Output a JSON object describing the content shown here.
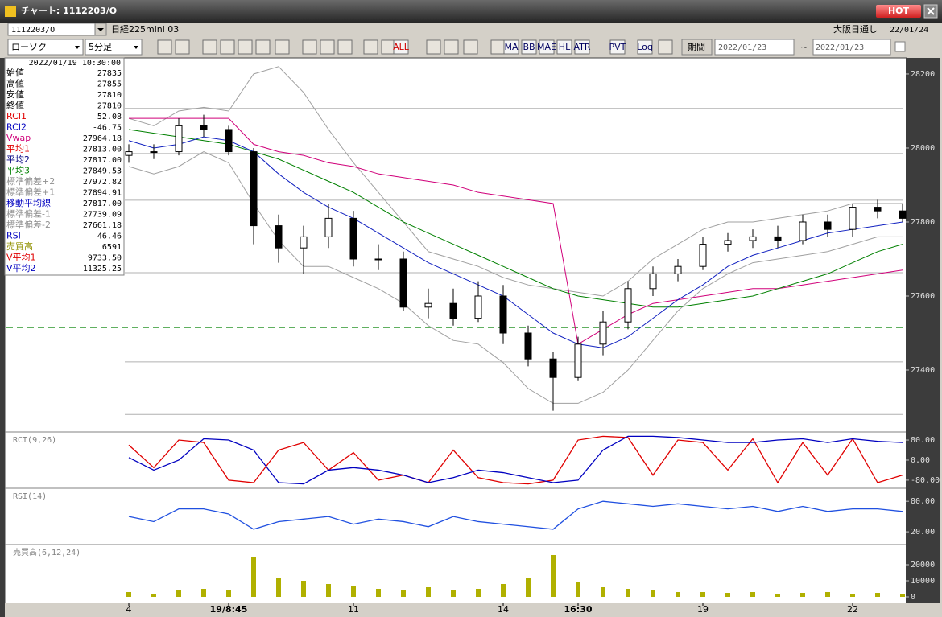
{
  "window": {
    "title": "チャート: 1112203/O",
    "hot": "HOT"
  },
  "toolbar": {
    "symbol": "1112203/O",
    "name": "日経225mini 03",
    "session": "大阪日通し",
    "date": "22/01/24",
    "chart_type": "ローソク",
    "interval": "5分足",
    "buttons": [
      "ALL",
      "MA",
      "BB",
      "MAE",
      "HL",
      "ATR",
      "PVT",
      "Log"
    ],
    "period_button": "期間",
    "from": "2022/01/23",
    "separator": "~",
    "to": "2022/01/23"
  },
  "info_panel": {
    "datetime": "2022/01/19 10:30:00",
    "rows": [
      {
        "label": "始値",
        "value": "27835",
        "color": "#000000"
      },
      {
        "label": "高値",
        "value": "27855",
        "color": "#000000"
      },
      {
        "label": "安値",
        "value": "27810",
        "color": "#000000"
      },
      {
        "label": "終値",
        "value": "27810",
        "color": "#000000"
      },
      {
        "label": "RCI1",
        "value": "52.08",
        "color": "#e00000"
      },
      {
        "label": "RCI2",
        "value": "-46.75",
        "color": "#0000c0"
      },
      {
        "label": "Vwap",
        "value": "27964.18",
        "color": "#d0007a"
      },
      {
        "label": "平均1",
        "value": "27813.00",
        "color": "#e00000"
      },
      {
        "label": "平均2",
        "value": "27817.00",
        "color": "#000080"
      },
      {
        "label": "平均3",
        "value": "27849.53",
        "color": "#008000"
      },
      {
        "label": "標準偏差+2",
        "value": "27972.82",
        "color": "#909090"
      },
      {
        "label": "標準偏差+1",
        "value": "27894.91",
        "color": "#909090"
      },
      {
        "label": "移動平均線",
        "value": "27817.00",
        "color": "#0000c0"
      },
      {
        "label": "標準偏差-1",
        "value": "27739.09",
        "color": "#909090"
      },
      {
        "label": "標準偏差-2",
        "value": "27661.18",
        "color": "#909090"
      },
      {
        "label": "RSI",
        "value": "46.46",
        "color": "#0000c0"
      },
      {
        "label": "売買高",
        "value": "6591",
        "color": "#909000"
      },
      {
        "label": "V平均1",
        "value": "9733.50",
        "color": "#e00000"
      },
      {
        "label": "V平均2",
        "value": "11325.25",
        "color": "#0000c0"
      }
    ]
  },
  "chart_data": [
    {
      "type": "candlestick",
      "categories": [
        "4",
        null,
        null,
        null,
        "19/8:45",
        null,
        null,
        null,
        null,
        "11",
        null,
        null,
        null,
        null,
        null,
        "14",
        null,
        null,
        "16:30",
        null,
        null,
        null,
        null,
        "19",
        null,
        null,
        null,
        null,
        null,
        "22",
        null,
        null
      ],
      "open": [
        27980,
        27990,
        27990,
        28060,
        28050,
        27990,
        27790,
        27730,
        27760,
        27810,
        27700,
        27700,
        27570,
        27580,
        27540,
        27600,
        27500,
        27430,
        27380,
        27470,
        27530,
        27620,
        27660,
        27680,
        27740,
        27750,
        27760,
        27750,
        27800,
        27780,
        27840,
        27830
      ],
      "high": [
        28010,
        28010,
        28080,
        28090,
        28060,
        28000,
        27820,
        27790,
        27850,
        27830,
        27740,
        27720,
        27620,
        27620,
        27640,
        27630,
        27520,
        27450,
        27490,
        27560,
        27640,
        27680,
        27700,
        27760,
        27770,
        27780,
        27790,
        27820,
        27820,
        27850,
        27860,
        27850
      ],
      "low": [
        27960,
        27970,
        27980,
        28030,
        27980,
        27740,
        27690,
        27660,
        27730,
        27680,
        27670,
        27560,
        27540,
        27520,
        27530,
        27470,
        27410,
        27290,
        27370,
        27440,
        27510,
        27600,
        27640,
        27670,
        27720,
        27730,
        27730,
        27740,
        27760,
        27760,
        27810,
        27800
      ],
      "close": [
        27990,
        27990,
        28060,
        28050,
        27990,
        27790,
        27730,
        27760,
        27810,
        27700,
        27700,
        27570,
        27580,
        27540,
        27600,
        27500,
        27430,
        27380,
        27470,
        27530,
        27620,
        27660,
        27680,
        27740,
        27750,
        27760,
        27750,
        27800,
        27780,
        27840,
        27830,
        27810
      ],
      "overlays": [
        {
          "color": "#a0a0a0",
          "values": [
            28080,
            28060,
            28100,
            28110,
            28100,
            28200,
            28220,
            28150,
            28050,
            27960,
            27880,
            27800,
            27720,
            27700,
            27680,
            27650,
            27630,
            27620,
            27610,
            27600,
            27640,
            27700,
            27740,
            27780,
            27800,
            27800,
            27810,
            27820,
            27830,
            27850,
            27850,
            27850
          ]
        },
        {
          "color": "#a0a0a0",
          "values": [
            27950,
            27930,
            27950,
            27990,
            27960,
            27850,
            27750,
            27680,
            27680,
            27650,
            27620,
            27580,
            27520,
            27480,
            27470,
            27420,
            27350,
            27310,
            27310,
            27340,
            27400,
            27480,
            27560,
            27620,
            27660,
            27690,
            27700,
            27710,
            27720,
            27740,
            27760,
            27760
          ]
        },
        {
          "color": "#d0007a",
          "values": [
            28080,
            28080,
            28080,
            28080,
            28080,
            28010,
            27990,
            27980,
            27960,
            27950,
            27930,
            27920,
            27910,
            27900,
            27880,
            27870,
            27860,
            27850,
            27470,
            27510,
            27550,
            27580,
            27590,
            27600,
            27610,
            27620,
            27620,
            27630,
            27640,
            27650,
            27660,
            27670
          ]
        },
        {
          "color": "#008000",
          "values": [
            28050,
            28040,
            28030,
            28020,
            28010,
            27990,
            27970,
            27940,
            27910,
            27880,
            27840,
            27800,
            27770,
            27740,
            27710,
            27680,
            27650,
            27620,
            27600,
            27590,
            27580,
            27570,
            27570,
            27580,
            27590,
            27600,
            27620,
            27640,
            27660,
            27690,
            27720,
            27740
          ]
        },
        {
          "color": "#1020c0",
          "values": [
            28020,
            28000,
            28010,
            28030,
            28020,
            27990,
            27930,
            27880,
            27840,
            27810,
            27770,
            27730,
            27690,
            27660,
            27630,
            27600,
            27550,
            27500,
            27470,
            27460,
            27490,
            27540,
            27590,
            27630,
            27680,
            27710,
            27730,
            27750,
            27770,
            27780,
            27790,
            27800
          ]
        }
      ],
      "levels": [
        28107,
        27985,
        27859,
        27663,
        27422,
        27280
      ],
      "reference_line": {
        "value": 27515,
        "color": "#008000"
      },
      "ylim": [
        27237,
        28226
      ],
      "yticks": [
        27400,
        27600,
        27800,
        28000,
        28200
      ]
    },
    {
      "type": "line",
      "title": "RCI(9,26)",
      "series": [
        {
          "color": "#e00000",
          "values": [
            60,
            -30,
            80,
            70,
            -80,
            -90,
            40,
            70,
            -40,
            30,
            -80,
            -60,
            -90,
            40,
            -70,
            -90,
            -95,
            -80,
            80,
            95,
            90,
            -60,
            80,
            70,
            -40,
            85,
            -90,
            70,
            -60,
            85,
            -90,
            -60
          ]
        },
        {
          "color": "#0000c0",
          "values": [
            10,
            -40,
            0,
            85,
            80,
            40,
            -90,
            -95,
            -40,
            -30,
            -40,
            -60,
            -90,
            -70,
            -40,
            -50,
            -70,
            -90,
            -80,
            40,
            95,
            95,
            90,
            80,
            70,
            70,
            80,
            85,
            70,
            85,
            75,
            70
          ]
        }
      ],
      "ylim": [
        -106,
        109
      ],
      "yticks": [
        {
          "value": -80,
          "label": "-80.00"
        },
        {
          "value": 0,
          "label": "0.00"
        },
        {
          "value": 80,
          "label": "80.00"
        }
      ]
    },
    {
      "type": "line",
      "title": "RSI(14)",
      "series": [
        {
          "color": "#2050e0",
          "values": [
            50,
            40,
            65,
            65,
            55,
            25,
            40,
            45,
            50,
            35,
            45,
            40,
            30,
            50,
            40,
            35,
            30,
            25,
            65,
            80,
            75,
            70,
            75,
            70,
            65,
            70,
            60,
            70,
            60,
            65,
            65,
            60
          ]
        }
      ],
      "ylim": [
        -2,
        104
      ],
      "yticks": [
        {
          "value": 20,
          "label": "20.00"
        },
        {
          "value": 80,
          "label": "80.00"
        }
      ]
    },
    {
      "type": "bar",
      "title": "売買高(6,12,24)",
      "color": "#b0b000",
      "values": [
        3000,
        2000,
        4000,
        5000,
        4000,
        25000,
        12000,
        10000,
        8000,
        7000,
        5000,
        4000,
        6000,
        4000,
        5000,
        8000,
        12000,
        26000,
        9000,
        6000,
        5000,
        4000,
        3000,
        3000,
        2500,
        3000,
        2000,
        2500,
        3000,
        2000,
        2500,
        2000
      ],
      "ylim": [
        -3000,
        32000
      ],
      "yticks": [
        0,
        10000,
        20000
      ]
    }
  ]
}
